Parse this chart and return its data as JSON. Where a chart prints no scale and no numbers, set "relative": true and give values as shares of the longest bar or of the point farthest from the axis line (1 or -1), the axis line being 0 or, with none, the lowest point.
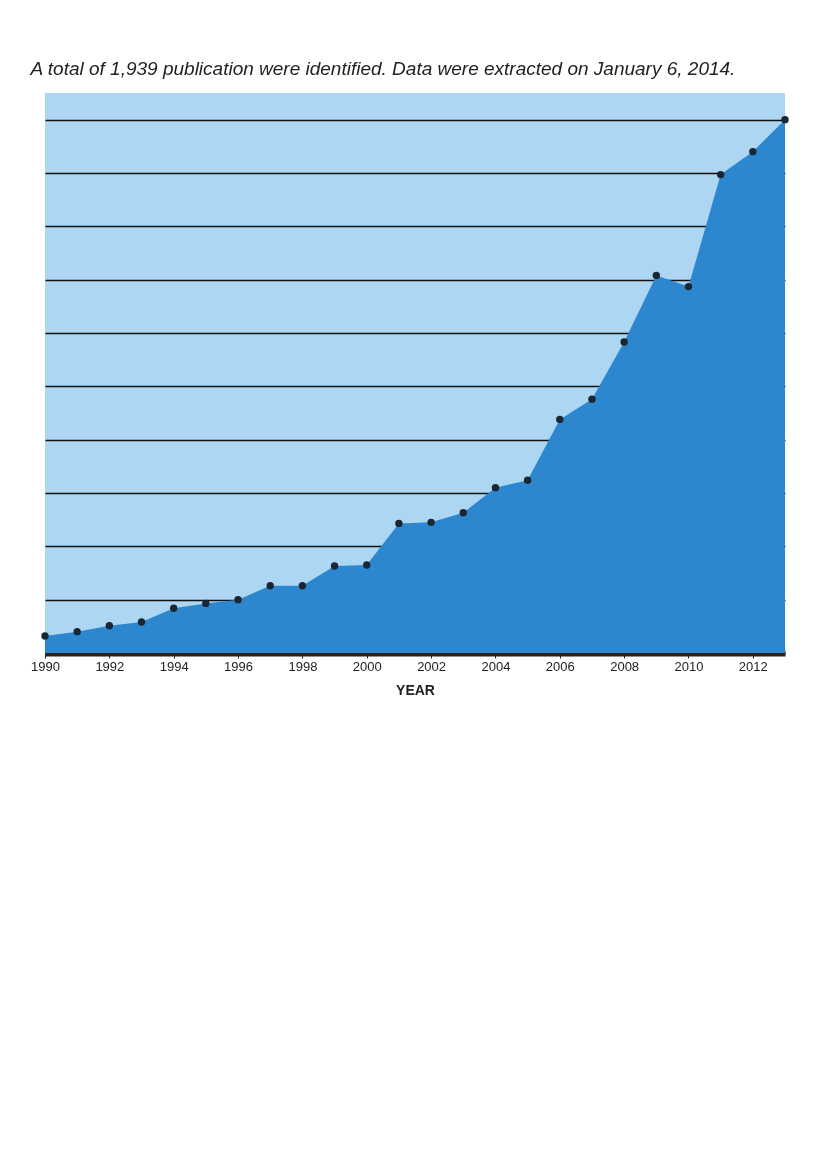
{
  "chart_data": {
    "type": "area",
    "title": "A total of 1,939 publication were identified. Data were extracted on January 6, 2014.",
    "xlabel": "YEAR",
    "relative": true,
    "x": [
      1990,
      1991,
      1992,
      1993,
      1994,
      1995,
      1996,
      1997,
      1998,
      1999,
      2000,
      2001,
      2002,
      2003,
      2004,
      2005,
      2006,
      2007,
      2008,
      2009,
      2010,
      2011,
      2012,
      2013
    ],
    "xlim": [
      1990,
      2013
    ],
    "xticks": [
      1990,
      1992,
      1994,
      1996,
      1998,
      2000,
      2002,
      2004,
      2006,
      2008,
      2010,
      2012
    ],
    "series": [
      {
        "color": "#2d87cf",
        "values": [
          0.032,
          0.04,
          0.051,
          0.058,
          0.084,
          0.093,
          0.1,
          0.126,
          0.126,
          0.163,
          0.165,
          0.243,
          0.245,
          0.263,
          0.31,
          0.324,
          0.438,
          0.476,
          0.583,
          0.708,
          0.687,
          0.897,
          0.94,
          1
        ]
      }
    ],
    "marker": "circle",
    "grid": "y"
  }
}
